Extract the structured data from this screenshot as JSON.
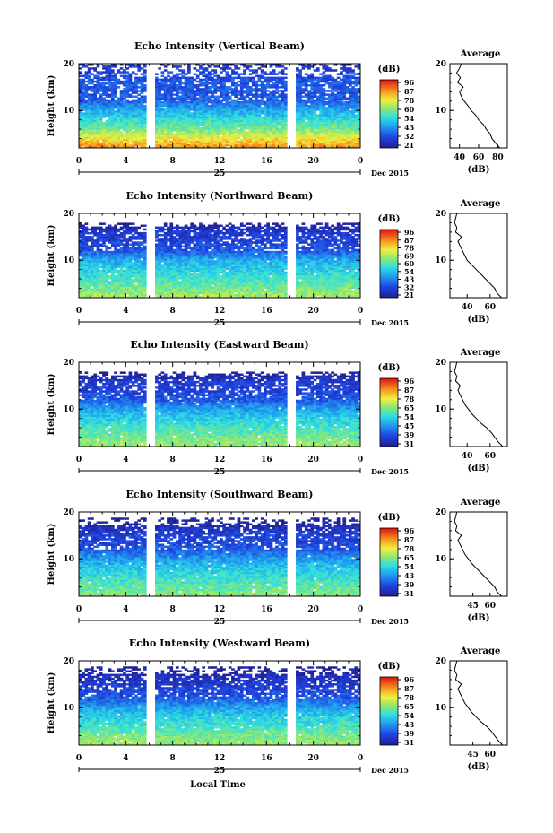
{
  "figure": {
    "x_axis_title": "Local Time",
    "date_label": "Dec 2015",
    "day_label": "25",
    "y_axis_title": "Height (km)",
    "colorbar_unit": "(dB)",
    "average_title": "Average",
    "average_xlabel": "(dB)"
  },
  "chart_data": [
    {
      "type": "heatmap",
      "title": "Echo Intensity (Vertical Beam)",
      "xlabel": "",
      "ylabel": "Height (km)",
      "x_ticks": [
        "0",
        "4",
        "8",
        "12",
        "16",
        "20",
        "0"
      ],
      "y_ticks": [
        "20",
        "10"
      ],
      "xlim": [
        0,
        24
      ],
      "ylim": [
        2,
        20
      ],
      "gaps_hours": [
        [
          5.8,
          6.6
        ],
        [
          17.8,
          18.6
        ]
      ],
      "colorbar_ticks": [
        "96",
        "87",
        "78",
        "69",
        "60",
        "51",
        "42",
        "33",
        "24"
      ],
      "colorbar_labels": [
        "96",
        "87",
        "78",
        "60",
        "54",
        "43",
        "32",
        "21"
      ],
      "intensity_profile": {
        "km": [
          2,
          4,
          6,
          8,
          10,
          12,
          14,
          16,
          18,
          20
        ],
        "level": [
          0.85,
          0.72,
          0.55,
          0.45,
          0.35,
          0.22,
          0.18,
          0.2,
          0.15,
          0.1
        ]
      },
      "average": {
        "xlim": [
          30,
          90
        ],
        "x_ticks": [
          "40",
          "60",
          "80"
        ],
        "y_ticks": [
          "20",
          "10"
        ],
        "height_km": [
          2,
          3,
          4,
          5,
          6,
          7,
          8,
          9,
          10,
          11,
          12,
          13,
          14,
          15,
          16,
          17,
          18,
          19,
          20
        ],
        "db": [
          82,
          78,
          74,
          72,
          68,
          65,
          60,
          57,
          52,
          49,
          45,
          42,
          40,
          44,
          38,
          41,
          37,
          40,
          42
        ]
      }
    },
    {
      "type": "heatmap",
      "title": "Echo Intensity (Northward Beam)",
      "xlabel": "",
      "ylabel": "Height (km)",
      "x_ticks": [
        "0",
        "4",
        "8",
        "12",
        "16",
        "20",
        "0"
      ],
      "y_ticks": [
        "20",
        "10"
      ],
      "xlim": [
        0,
        24
      ],
      "ylim": [
        2,
        20
      ],
      "gaps_hours": [
        [
          5.8,
          6.6
        ],
        [
          17.8,
          18.6
        ]
      ],
      "colorbar_labels": [
        "96",
        "87",
        "78",
        "69",
        "60",
        "54",
        "43",
        "32",
        "21"
      ],
      "intensity_profile": {
        "km": [
          2,
          4,
          6,
          8,
          10,
          12,
          14,
          16,
          18,
          20
        ],
        "level": [
          0.62,
          0.55,
          0.48,
          0.42,
          0.35,
          0.2,
          0.14,
          0.12,
          0.0,
          0.0
        ]
      },
      "average": {
        "xlim": [
          25,
          75
        ],
        "x_ticks": [
          "40",
          "60"
        ],
        "y_ticks": [
          "20",
          "10"
        ],
        "height_km": [
          2,
          3,
          4,
          5,
          6,
          7,
          8,
          9,
          10,
          11,
          12,
          13,
          14,
          15,
          16,
          17,
          18,
          19,
          20
        ],
        "db": [
          70,
          66,
          64,
          60,
          56,
          52,
          48,
          44,
          40,
          38,
          36,
          34,
          32,
          35,
          30,
          31,
          29,
          30,
          31
        ]
      }
    },
    {
      "type": "heatmap",
      "title": "Echo Intensity (Eastward Beam)",
      "xlabel": "",
      "ylabel": "Height (km)",
      "x_ticks": [
        "0",
        "4",
        "8",
        "12",
        "16",
        "20",
        "0"
      ],
      "y_ticks": [
        "20",
        "10"
      ],
      "xlim": [
        0,
        24
      ],
      "ylim": [
        2,
        20
      ],
      "gaps_hours": [
        [
          5.8,
          6.6
        ],
        [
          17.8,
          18.6
        ]
      ],
      "colorbar_labels": [
        "96",
        "87",
        "78",
        "65",
        "54",
        "45",
        "39",
        "31"
      ],
      "intensity_profile": {
        "km": [
          2,
          4,
          6,
          8,
          10,
          12,
          14,
          16,
          18,
          20
        ],
        "level": [
          0.6,
          0.55,
          0.48,
          0.42,
          0.33,
          0.2,
          0.14,
          0.12,
          0.0,
          0.0
        ]
      },
      "average": {
        "xlim": [
          25,
          75
        ],
        "x_ticks": [
          "40",
          "60"
        ],
        "y_ticks": [
          "20",
          "10"
        ],
        "height_km": [
          2,
          3,
          4,
          5,
          6,
          7,
          8,
          9,
          10,
          11,
          12,
          13,
          14,
          15,
          16,
          17,
          18,
          19,
          20
        ],
        "db": [
          71,
          67,
          64,
          61,
          57,
          52,
          48,
          44,
          41,
          38,
          36,
          34,
          32,
          34,
          30,
          31,
          29,
          30,
          31
        ]
      }
    },
    {
      "type": "heatmap",
      "title": "Echo Intensity (Southward Beam)",
      "xlabel": "",
      "ylabel": "Height (km)",
      "x_ticks": [
        "0",
        "4",
        "8",
        "12",
        "16",
        "20",
        "0"
      ],
      "y_ticks": [
        "20",
        "10"
      ],
      "xlim": [
        0,
        24
      ],
      "ylim": [
        2,
        20
      ],
      "gaps_hours": [
        [
          5.8,
          6.6
        ],
        [
          17.8,
          18.6
        ]
      ],
      "colorbar_labels": [
        "96",
        "87",
        "78",
        "65",
        "54",
        "43",
        "39",
        "31"
      ],
      "intensity_profile": {
        "km": [
          2,
          4,
          6,
          8,
          10,
          12,
          14,
          16,
          18,
          20
        ],
        "level": [
          0.58,
          0.52,
          0.46,
          0.4,
          0.32,
          0.2,
          0.14,
          0.12,
          0.02,
          0.0
        ]
      },
      "average": {
        "xlim": [
          25,
          75
        ],
        "x_ticks": [
          "45",
          "60"
        ],
        "y_ticks": [
          "20",
          "10"
        ],
        "height_km": [
          2,
          3,
          4,
          5,
          6,
          7,
          8,
          9,
          10,
          11,
          12,
          13,
          14,
          15,
          16,
          17,
          18,
          19,
          20
        ],
        "db": [
          70,
          66,
          64,
          60,
          56,
          52,
          48,
          44,
          41,
          38,
          36,
          34,
          32,
          35,
          30,
          31,
          29,
          30,
          31
        ]
      }
    },
    {
      "type": "heatmap",
      "title": "Echo Intensity (Westward Beam)",
      "xlabel": "Local Time",
      "ylabel": "Height (km)",
      "x_ticks": [
        "0",
        "4",
        "8",
        "12",
        "16",
        "20",
        "0"
      ],
      "y_ticks": [
        "20",
        "10"
      ],
      "xlim": [
        0,
        24
      ],
      "ylim": [
        2,
        20
      ],
      "gaps_hours": [
        [
          5.8,
          6.6
        ],
        [
          17.8,
          18.6
        ]
      ],
      "colorbar_labels": [
        "96",
        "87",
        "78",
        "65",
        "54",
        "43",
        "39",
        "31"
      ],
      "intensity_profile": {
        "km": [
          2,
          4,
          6,
          8,
          10,
          12,
          14,
          16,
          18,
          20
        ],
        "level": [
          0.6,
          0.55,
          0.48,
          0.42,
          0.33,
          0.2,
          0.14,
          0.1,
          0.02,
          0.0
        ]
      },
      "average": {
        "xlim": [
          25,
          75
        ],
        "x_ticks": [
          "45",
          "60"
        ],
        "y_ticks": [
          "20",
          "10"
        ],
        "height_km": [
          2,
          3,
          4,
          5,
          6,
          7,
          8,
          9,
          10,
          11,
          12,
          13,
          14,
          15,
          16,
          17,
          18,
          19,
          20
        ],
        "db": [
          71,
          67,
          64,
          61,
          57,
          52,
          48,
          44,
          41,
          38,
          36,
          34,
          32,
          35,
          30,
          31,
          29,
          30,
          31
        ]
      }
    }
  ]
}
